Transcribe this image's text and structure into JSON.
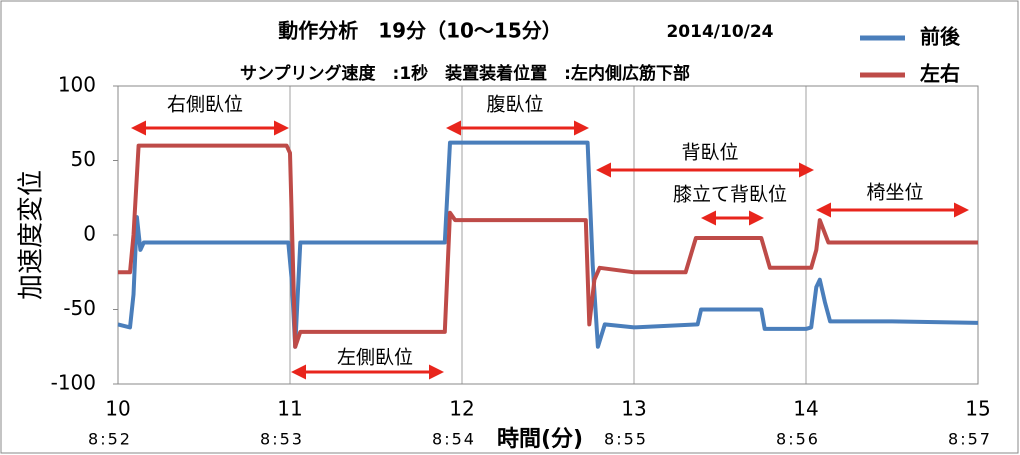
{
  "chart_data": {
    "type": "line",
    "title": "動作分析　19分（10～15分）",
    "date": "2014/10/24",
    "subtitle": "サンプリング速度　:1秒　装置装着位置　:左内側広筋下部",
    "ylabel": "加速度変位",
    "xlabel": "時間(分)",
    "xlim": [
      10,
      15
    ],
    "xticks": [
      10,
      11,
      12,
      13,
      14,
      15
    ],
    "x_sublabels": [
      "8:52",
      "8:53",
      "8:54",
      "8:55",
      "8:56",
      "8:57"
    ],
    "ylim": [
      -100,
      100
    ],
    "yticks": [
      -100,
      -50,
      0,
      50,
      100
    ],
    "grid": "x",
    "legend": "top-right",
    "series": [
      {
        "name": "前後",
        "color": "#4a7ebb",
        "x": [
          10,
          10.07,
          10.09,
          10.11,
          10.13,
          10.15,
          10.5,
          10.99,
          11.01,
          11.03,
          11.06,
          11.5,
          11.9,
          11.93,
          12.3,
          12.73,
          12.76,
          12.79,
          12.83,
          13.0,
          13.37,
          13.39,
          13.74,
          13.76,
          14.0,
          14.03,
          14.06,
          14.08,
          14.11,
          14.14,
          14.5,
          15
        ],
        "values": [
          -60,
          -62,
          -40,
          12,
          -10,
          -5,
          -5,
          -5,
          -30,
          -75,
          -5,
          -5,
          -5,
          62,
          62,
          62,
          -20,
          -75,
          -60,
          -62,
          -60,
          -50,
          -50,
          -63,
          -63,
          -62,
          -35,
          -30,
          -45,
          -58,
          -58,
          -59
        ]
      },
      {
        "name": "左右",
        "color": "#be4b48",
        "x": [
          10,
          10.07,
          10.09,
          10.12,
          10.5,
          10.98,
          11.0,
          11.03,
          11.06,
          11.5,
          11.9,
          11.93,
          11.96,
          12.3,
          12.72,
          12.74,
          12.77,
          12.8,
          13.0,
          13.3,
          13.36,
          13.5,
          13.74,
          13.79,
          14.0,
          14.03,
          14.06,
          14.08,
          14.13,
          14.5,
          15
        ],
        "values": [
          -25,
          -25,
          0,
          60,
          60,
          60,
          55,
          -75,
          -65,
          -65,
          -65,
          15,
          10,
          10,
          10,
          -60,
          -30,
          -22,
          -25,
          -25,
          -2,
          -2,
          -2,
          -22,
          -22,
          -22,
          -10,
          10,
          -5,
          -5,
          -5
        ]
      }
    ],
    "annotations": [
      "右側臥位",
      "左側臥位",
      "腹臥位",
      "背臥位",
      "膝立て背臥位",
      "椅坐位"
    ]
  }
}
